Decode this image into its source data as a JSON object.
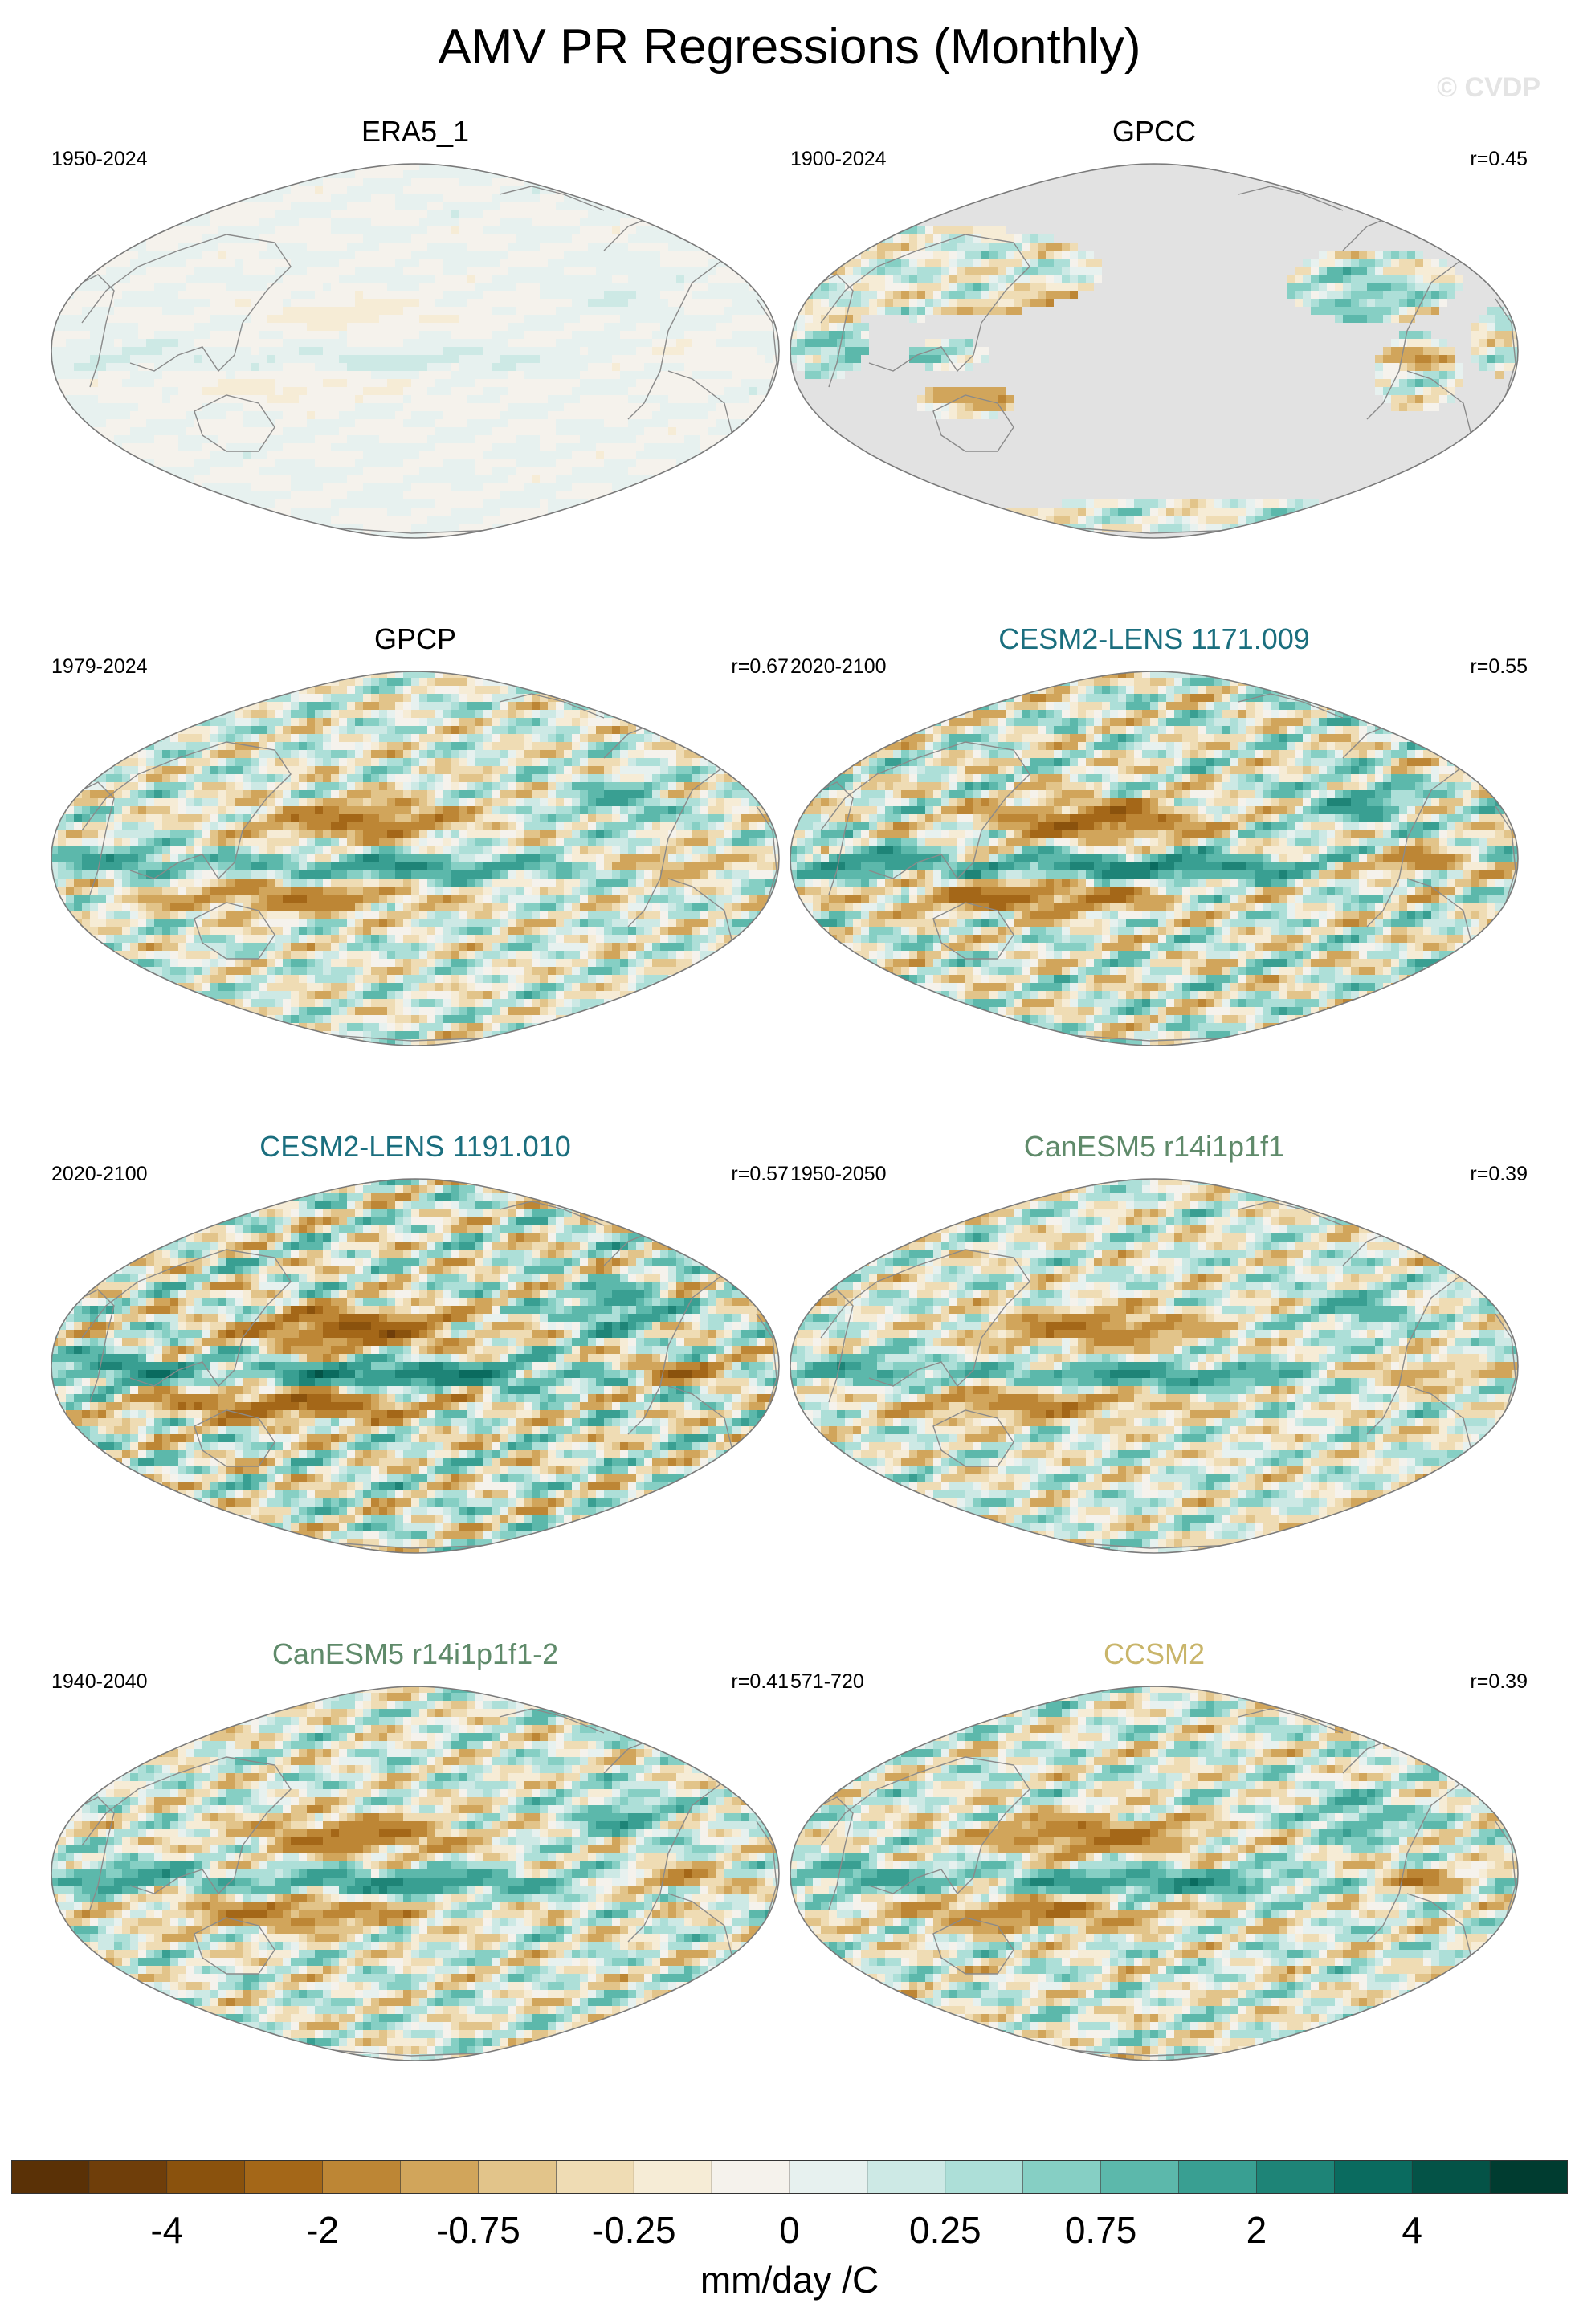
{
  "title": "AMV PR Regressions (Monthly)",
  "watermark": "© CVDP",
  "colors": {
    "coast": "#8a8a8a",
    "missing": "#e2e2e2",
    "scale": [
      "#5a3106",
      "#6f3e0a",
      "#8a520d",
      "#a46718",
      "#bd8635",
      "#d1a55b",
      "#e2c48a",
      "#efdcb4",
      "#f6ecd6",
      "#f5f2ec",
      "#e7f1ef",
      "#cde9e5",
      "#addfd8",
      "#86cfc4",
      "#5cb8ab",
      "#399f92",
      "#1e8477",
      "#0a6b5f",
      "#045347",
      "#003c30"
    ]
  },
  "panels": [
    {
      "name": "ERA5_1",
      "period": "1950-2024",
      "r": "",
      "title_color": "#000000",
      "amp": 0.08,
      "missing": false,
      "seed": 1
    },
    {
      "name": "GPCC",
      "period": "1900-2024",
      "r": "r=0.45",
      "title_color": "#000000",
      "amp": 0.75,
      "missing": true,
      "seed": 2
    },
    {
      "name": "GPCP",
      "period": "1979-2024",
      "r": "r=0.67",
      "title_color": "#000000",
      "amp": 1.0,
      "missing": false,
      "seed": 3
    },
    {
      "name": "CESM2-LENS 1171.009",
      "period": "2020-2100",
      "r": "r=0.55",
      "title_color": "#1a6e7e",
      "amp": 1.3,
      "missing": false,
      "seed": 4
    },
    {
      "name": "CESM2-LENS 1191.010",
      "period": "2020-2100",
      "r": "r=0.57",
      "title_color": "#1a6e7e",
      "amp": 1.5,
      "missing": false,
      "seed": 5
    },
    {
      "name": "CanESM5 r14i1p1f1",
      "period": "1950-2050",
      "r": "r=0.39",
      "title_color": "#5f8a6a",
      "amp": 1.0,
      "missing": false,
      "seed": 6
    },
    {
      "name": "CanESM5 r14i1p1f1-2",
      "period": "1940-2040",
      "r": "r=0.41",
      "title_color": "#5f8a6a",
      "amp": 1.05,
      "missing": false,
      "seed": 7
    },
    {
      "name": "CCSM2",
      "period": "571-720",
      "r": "r=0.39",
      "title_color": "#c9b56a",
      "amp": 1.05,
      "missing": false,
      "seed": 8
    }
  ],
  "chart_data": {
    "type": "heatmap",
    "title": "AMV PR Regressions (Monthly)",
    "projection": "Robinson, centered on the Pacific",
    "colorbar": {
      "labels": [
        "-4",
        "-2",
        "-0.75",
        "-0.25",
        "0",
        "0.25",
        "0.75",
        "2",
        "4"
      ],
      "units": "mm/day /C",
      "bins": 20
    },
    "panel_names": [
      "ERA5_1",
      "GPCC",
      "GPCP",
      "CESM2-LENS 1171.009",
      "CESM2-LENS 1191.010",
      "CanESM5 r14i1p1f1",
      "CanESM5 r14i1p1f1-2",
      "CCSM2"
    ],
    "periods": [
      "1950-2024",
      "1900-2024",
      "1979-2024",
      "2020-2100",
      "2020-2100",
      "1950-2050",
      "1940-2040",
      "571-720"
    ],
    "pattern_correlations": [
      "",
      "r=0.45",
      "r=0.67",
      "r=0.55",
      "r=0.57",
      "r=0.39",
      "r=0.41",
      "r=0.39"
    ]
  }
}
